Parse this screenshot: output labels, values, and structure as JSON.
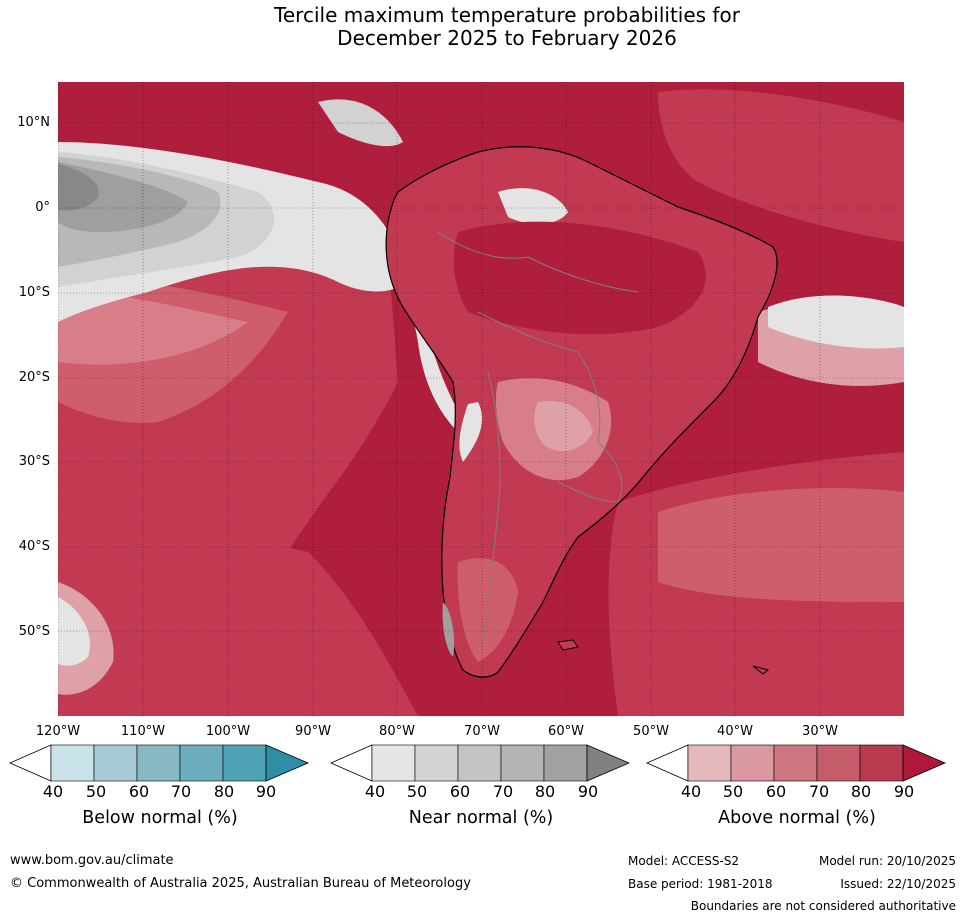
{
  "title": {
    "line1": "Tercile maximum temperature probabilities for",
    "line2": "December 2025 to February 2026"
  },
  "map": {
    "lat_labels": [
      "10°N",
      "0°",
      "10°S",
      "20°S",
      "30°S",
      "40°S",
      "50°S"
    ],
    "lon_labels": [
      "120°W",
      "110°W",
      "100°W",
      "90°W",
      "80°W",
      "70°W",
      "60°W",
      "50°W",
      "40°W",
      "30°W"
    ],
    "colors": {
      "above_90": "#b01e3d",
      "above_80": "#c23a52",
      "above_70": "#cf5e6d",
      "above_60": "#d77e88",
      "above_50": "#dea1a7",
      "above_40": "#e4bcc0",
      "near_50": "#e4e4e4",
      "near_60": "#d2d2d2",
      "near_70": "#b8b8b8",
      "near_80": "#9f9f9f",
      "near_90": "#888888",
      "below_50": "#a6cbd5",
      "land_outline": "#000000",
      "borders": "#7f7f7f"
    }
  },
  "legends": [
    {
      "label": "Below normal (%)",
      "ticks": [
        "40",
        "50",
        "60",
        "70",
        "80",
        "90"
      ],
      "colors": [
        "#c9e1e8",
        "#a6cbd5",
        "#88b8c3",
        "#6caebe",
        "#4ea3b5",
        "#2d8ea5"
      ]
    },
    {
      "label": "Near normal (%)",
      "ticks": [
        "40",
        "50",
        "60",
        "70",
        "80",
        "90"
      ],
      "colors": [
        "#e6e6e6",
        "#d4d4d4",
        "#c4c4c4",
        "#b4b4b4",
        "#a2a2a2",
        "#818181"
      ]
    },
    {
      "label": "Above normal (%)",
      "ticks": [
        "40",
        "50",
        "60",
        "70",
        "80",
        "90"
      ],
      "colors": [
        "#e4b8bd",
        "#da98a0",
        "#cf7781",
        "#c55c69",
        "#b93a4f",
        "#b0183a"
      ]
    }
  ],
  "footer": {
    "website": "www.bom.gov.au/climate",
    "copyright": "© Commonwealth of Australia 2025, Australian Bureau of Meteorology",
    "model": "Model: ACCESS-S2",
    "base_period": "Base period: 1981-2018",
    "model_run": "Model run: 20/10/2025",
    "issued": "Issued: 22/10/2025",
    "disclaimer": "Boundaries are not considered authoritative"
  }
}
